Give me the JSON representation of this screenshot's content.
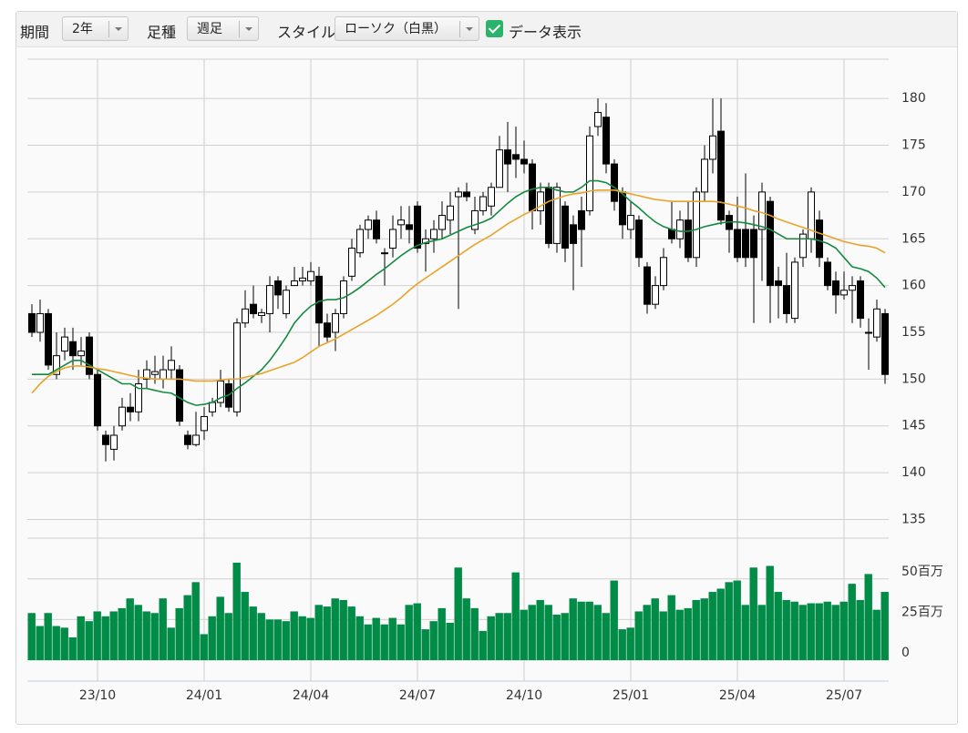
{
  "toolbar": {
    "period_label": "期間",
    "period_value": "2年",
    "interval_label": "足種",
    "interval_value": "週足",
    "style_label": "スタイル",
    "style_value": "ローソク（白黒）",
    "data_label": "データ表示"
  },
  "chart_data": [
    {
      "type": "candlestick",
      "categories": [
        null,
        null,
        null,
        null,
        null,
        null,
        null,
        null,
        "23/10",
        null,
        null,
        null,
        null,
        null,
        null,
        null,
        null,
        null,
        null,
        null,
        null,
        "24/01",
        null,
        null,
        null,
        null,
        null,
        null,
        null,
        null,
        null,
        null,
        null,
        null,
        "24/04",
        null,
        null,
        null,
        null,
        null,
        null,
        null,
        null,
        null,
        null,
        null,
        null,
        "24/07",
        null,
        null,
        null,
        null,
        null,
        null,
        null,
        null,
        null,
        null,
        null,
        null,
        "24/10",
        null,
        null,
        null,
        null,
        null,
        null,
        null,
        null,
        null,
        null,
        null,
        null,
        "25/01",
        null,
        null,
        null,
        null,
        null,
        null,
        null,
        null,
        null,
        null,
        null,
        null,
        "25/04",
        null,
        null,
        null,
        null,
        null,
        null,
        null,
        null,
        null,
        null,
        null,
        null,
        "25/07",
        null,
        null,
        null,
        null,
        null
      ],
      "open": [
        157,
        155,
        157,
        150.5,
        153,
        154,
        152.5,
        154.5,
        150.5,
        144,
        142.5,
        145,
        147,
        146.5,
        150,
        150.5,
        150,
        151,
        151,
        144,
        143,
        144.5,
        146.5,
        147.5,
        149.5,
        146.5,
        156,
        158,
        156.8,
        157,
        160.5,
        157,
        160,
        160.5,
        160.5,
        161,
        156,
        155,
        157,
        161,
        163.5,
        166,
        167,
        163.5,
        164,
        166.5,
        166.5,
        168.5,
        164.5,
        165,
        166,
        167,
        169.5,
        170,
        166,
        168,
        168.5,
        170.5,
        174.5,
        174,
        173.5,
        173,
        168,
        170.5,
        164.5,
        168.5,
        166.5,
        168,
        168,
        177,
        178,
        173,
        170,
        166,
        167,
        162,
        158,
        160,
        166,
        165,
        167,
        163,
        170,
        173.5,
        176.5,
        167.5,
        166,
        166,
        166,
        166,
        169,
        160.5,
        160,
        156.5,
        163,
        165,
        167,
        162.5,
        160.5,
        159,
        159.5,
        160.5,
        155,
        154.5,
        157
      ],
      "high": [
        158,
        158.5,
        157.5,
        155,
        155.5,
        155.5,
        154.5,
        155,
        151,
        144.5,
        145,
        148,
        148.5,
        151,
        152,
        152.5,
        152.5,
        153.5,
        151.5,
        144.5,
        146.5,
        147,
        148,
        151,
        150,
        156.5,
        159.5,
        160,
        157.5,
        161,
        161,
        160,
        162,
        162,
        162.5,
        162,
        157,
        157.5,
        161,
        165,
        166.5,
        167.5,
        168,
        164,
        167.5,
        168.5,
        168.5,
        169,
        166,
        167,
        169,
        170,
        170.5,
        171,
        169.5,
        170,
        171,
        176,
        177.5,
        177,
        175.5,
        173.5,
        171,
        171,
        171,
        169,
        167.5,
        169.5,
        177,
        180,
        179.5,
        173.5,
        170.5,
        169,
        167.5,
        162.5,
        161,
        164,
        169,
        168,
        169,
        170.5,
        175,
        180,
        180,
        168,
        169.5,
        172,
        167.5,
        171,
        169.5,
        162,
        163.5,
        163,
        166,
        170.5,
        168,
        163,
        161.5,
        161.5,
        161,
        161,
        156.5,
        158.5,
        157.5
      ],
      "low": [
        154.5,
        154,
        151,
        150,
        152,
        151,
        151.5,
        150,
        144.5,
        141.2,
        141.3,
        144.5,
        145.5,
        145.5,
        149,
        149.5,
        149,
        150,
        145,
        142.5,
        142.8,
        143.5,
        146,
        147,
        146.5,
        146,
        155.5,
        156.5,
        156,
        155,
        157.5,
        156.5,
        160,
        160,
        160,
        153.5,
        154,
        153,
        156.5,
        160.5,
        163,
        165,
        164.5,
        160,
        163,
        165,
        164.5,
        163.5,
        161.5,
        163.5,
        165,
        165.5,
        157.5,
        169,
        165.5,
        167.5,
        167.5,
        170.5,
        170,
        171.5,
        172,
        166,
        166.5,
        164,
        163.5,
        162.5,
        159.5,
        162,
        167.5,
        176,
        172,
        168,
        165,
        165,
        162,
        157,
        157.5,
        159.5,
        164.5,
        164,
        162.5,
        162,
        169,
        172,
        166.5,
        163.5,
        162.5,
        162,
        156,
        160.5,
        156,
        156.5,
        156,
        156,
        162,
        163.5,
        162,
        159.5,
        157,
        158.5,
        156,
        155.5,
        151,
        154,
        149.5
      ],
      "close": [
        155,
        157,
        151.5,
        152.5,
        154.5,
        152.5,
        153,
        150.5,
        145,
        143,
        144,
        147,
        146.5,
        149.5,
        151,
        150.8,
        151,
        152,
        145.5,
        143,
        144,
        146,
        147.5,
        149.8,
        147,
        156,
        157.5,
        157,
        157.1,
        160,
        159,
        159.5,
        160.5,
        160.8,
        161.5,
        156,
        154.5,
        157,
        160.5,
        164,
        166,
        167,
        165,
        163.5,
        166,
        167,
        166,
        164,
        165,
        166,
        167.5,
        168.5,
        170,
        169.5,
        168,
        169.5,
        170.5,
        174.5,
        173,
        173.5,
        173,
        168,
        170,
        164.5,
        170.5,
        164,
        164.5,
        166,
        176,
        178.5,
        173,
        169,
        166.5,
        167.5,
        163,
        158,
        160,
        163,
        165,
        167,
        163,
        170,
        173.5,
        176,
        167,
        166,
        163,
        163,
        163,
        170,
        160,
        160,
        157,
        162.5,
        165.5,
        170,
        163,
        160,
        159,
        159.5,
        160,
        156.5,
        155,
        157.5,
        150.5
      ],
      "up_color": "#ffffff",
      "down_color": "#000000",
      "wick_color": "#000000",
      "series": [
        {
          "color": "#13893f",
          "values": [
            150.5,
            150.5,
            150.5,
            151,
            151.5,
            152,
            152,
            151.5,
            151,
            150.5,
            150,
            149.5,
            149.5,
            149,
            149,
            148.8,
            148.6,
            148.5,
            148,
            147.5,
            147.2,
            147.3,
            147.5,
            148,
            148.3,
            149,
            149.6,
            150.3,
            151,
            152,
            153.2,
            154.5,
            156,
            157,
            157.8,
            158.3,
            158.5,
            158.5,
            158.7,
            159.2,
            159.8,
            160.5,
            161.2,
            161.8,
            162.5,
            163.2,
            163.8,
            164.3,
            164.6,
            164.8,
            165,
            165.4,
            165.8,
            166.2,
            166.5,
            166.8,
            167.2,
            168,
            168.8,
            169.5,
            170,
            170.3,
            170.5,
            170.5,
            170.2,
            170,
            170,
            170.5,
            171.2,
            171.2,
            171,
            170.5,
            169.8,
            169,
            168.3,
            167.5,
            166.8,
            166.3,
            166,
            165.8,
            165.8,
            166,
            166.3,
            166.5,
            166.7,
            166.8,
            166.8,
            166.7,
            166.5,
            166.3,
            166,
            165.5,
            165,
            165,
            165,
            165,
            164.8,
            164.5,
            164,
            163,
            162,
            161.8,
            161.5,
            160.8,
            159.8
          ]
        },
        {
          "color": "#e9a32a",
          "values": [
            148.5,
            149.5,
            150.3,
            150.8,
            151.2,
            151.4,
            151.4,
            151.3,
            151.1,
            151,
            150.8,
            150.6,
            150.4,
            150.2,
            150.1,
            150,
            150,
            150,
            150,
            149.9,
            149.8,
            149.8,
            149.8,
            149.9,
            150,
            150,
            150.2,
            150.4,
            150.6,
            150.9,
            151.2,
            151.5,
            151.8,
            152.3,
            152.9,
            153.5,
            153.9,
            154.3,
            154.8,
            155.3,
            155.8,
            156.3,
            156.8,
            157.4,
            158,
            158.7,
            159.5,
            160.2,
            160.8,
            161.4,
            162,
            162.6,
            163.2,
            163.8,
            164.4,
            164.9,
            165.4,
            166,
            166.6,
            167.1,
            167.6,
            168,
            168.5,
            169,
            169.3,
            169.6,
            169.8,
            169.9,
            170.1,
            170.2,
            170.2,
            170.2,
            170,
            169.8,
            169.6,
            169.4,
            169.2,
            169.1,
            169,
            169,
            169,
            169,
            169,
            169,
            168.9,
            168.7,
            168.5,
            168.3,
            168,
            167.8,
            167.5,
            167.1,
            166.8,
            166.5,
            166.2,
            165.9,
            165.6,
            165.3,
            165,
            164.7,
            164.5,
            164.3,
            164.2,
            164,
            163.5
          ]
        }
      ],
      "ylim": [
        133,
        184.2
      ],
      "yticks": [
        135,
        140,
        145,
        150,
        155,
        160,
        165,
        170,
        175,
        180
      ],
      "grid": true
    },
    {
      "type": "bar",
      "color": "#008c47",
      "values": [
        29,
        21,
        29,
        21,
        20,
        14,
        27,
        24,
        30,
        27,
        30,
        32,
        38,
        34,
        30,
        29,
        38,
        20,
        32,
        40,
        48,
        16,
        27,
        39,
        29,
        60,
        42,
        33,
        29,
        25,
        25,
        24,
        30,
        27,
        26,
        34,
        33,
        38,
        37,
        33,
        27,
        22,
        26,
        22,
        26,
        22,
        34,
        35,
        19,
        24,
        32,
        23,
        57,
        38,
        32,
        18,
        27,
        29,
        29,
        54,
        31,
        34,
        37,
        34,
        28,
        29,
        38,
        36,
        36,
        34,
        29,
        49,
        19,
        20,
        30,
        34,
        38,
        30,
        40,
        31,
        32,
        37,
        38,
        42,
        44,
        48,
        49,
        34,
        57,
        34,
        58,
        42,
        37,
        36,
        34,
        35,
        35,
        36,
        34,
        36,
        47,
        37,
        53,
        31,
        42
      ],
      "ylim": [
        0,
        65
      ],
      "yticks": [
        0,
        {
          "value": 25,
          "label": "25百万"
        },
        {
          "value": 50,
          "label": "50百万"
        }
      ],
      "grid": true
    }
  ]
}
